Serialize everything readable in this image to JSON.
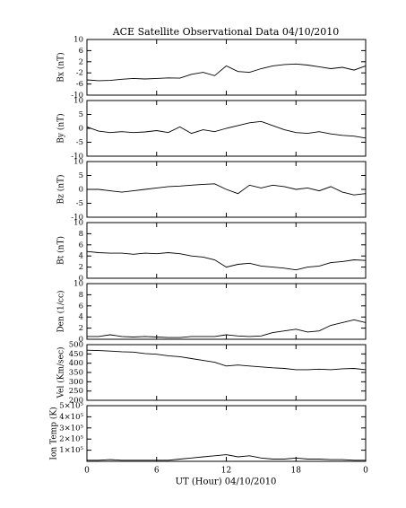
{
  "chart_data": [
    {
      "type": "line",
      "title": "ACE Satellite Observational Data   04/10/2010",
      "ylabel": "Bx (nT)",
      "color": "#000000",
      "x": [
        0,
        1,
        2,
        3,
        4,
        5,
        6,
        7,
        8,
        9,
        10,
        11,
        12,
        13,
        14,
        15,
        16,
        17,
        18,
        19,
        20,
        21,
        22,
        23,
        24
      ],
      "values": [
        -4.5,
        -4.8,
        -4.7,
        -4.3,
        -4.0,
        -4.2,
        -4.0,
        -3.8,
        -3.9,
        -2.5,
        -1.8,
        -3.0,
        0.5,
        -1.5,
        -1.8,
        -0.5,
        0.5,
        1.0,
        1.2,
        0.8,
        0.2,
        -0.5,
        0.0,
        -1.0,
        0.5
      ],
      "xlim": [
        0,
        24
      ],
      "ylim": [
        -10,
        10
      ],
      "yticks": [
        -10,
        -6,
        -2,
        2,
        6,
        10
      ]
    },
    {
      "type": "line",
      "ylabel": "By (nT)",
      "color": "#000000",
      "x": [
        0,
        1,
        2,
        3,
        4,
        5,
        6,
        7,
        8,
        9,
        10,
        11,
        12,
        13,
        14,
        15,
        16,
        17,
        18,
        19,
        20,
        21,
        22,
        23,
        24
      ],
      "values": [
        0.5,
        -1,
        -1.5,
        -1.2,
        -1.5,
        -1.3,
        -0.8,
        -1.5,
        0.5,
        -1.8,
        -0.5,
        -1.2,
        0,
        1,
        2,
        2.5,
        1,
        -0.5,
        -1.5,
        -1.8,
        -1.2,
        -2.0,
        -2.5,
        -2.8,
        -3.5
      ],
      "xlim": [
        0,
        24
      ],
      "ylim": [
        -10,
        10
      ],
      "yticks": [
        -10,
        -5,
        0,
        5,
        10
      ]
    },
    {
      "type": "line",
      "ylabel": "Bz (nT)",
      "color": "#000000",
      "x": [
        0,
        1,
        2,
        3,
        4,
        5,
        6,
        7,
        8,
        9,
        10,
        11,
        12,
        13,
        14,
        15,
        16,
        17,
        18,
        19,
        20,
        21,
        22,
        23,
        24
      ],
      "values": [
        0,
        0,
        -0.5,
        -1,
        -0.5,
        0,
        0.5,
        1,
        1.2,
        1.5,
        1.8,
        2,
        0,
        -1.5,
        1.5,
        0.5,
        1.5,
        1,
        0,
        0.5,
        -0.5,
        1,
        -1,
        -2,
        -1.5
      ],
      "xlim": [
        0,
        24
      ],
      "ylim": [
        -10,
        10
      ],
      "yticks": [
        -10,
        -5,
        0,
        5,
        10
      ]
    },
    {
      "type": "line",
      "ylabel": "Bt (nT)",
      "color": "#000000",
      "x": [
        0,
        1,
        2,
        3,
        4,
        5,
        6,
        7,
        8,
        9,
        10,
        11,
        12,
        13,
        14,
        15,
        16,
        17,
        18,
        19,
        20,
        21,
        22,
        23,
        24
      ],
      "values": [
        4.8,
        4.6,
        4.5,
        4.5,
        4.3,
        4.5,
        4.4,
        4.6,
        4.4,
        4.0,
        3.8,
        3.3,
        2,
        2.5,
        2.7,
        2.2,
        2,
        1.8,
        1.5,
        2,
        2.2,
        2.8,
        3,
        3.3,
        3.2
      ],
      "xlim": [
        0,
        24
      ],
      "ylim": [
        0,
        10
      ],
      "yticks": [
        0,
        2,
        4,
        6,
        8,
        10
      ]
    },
    {
      "type": "line",
      "ylabel": "Den (1/cc)",
      "color": "#000000",
      "x": [
        0,
        1,
        2,
        3,
        4,
        5,
        6,
        7,
        8,
        9,
        10,
        11,
        12,
        13,
        14,
        15,
        16,
        17,
        18,
        19,
        20,
        21,
        22,
        23,
        24
      ],
      "values": [
        0.5,
        0.5,
        0.8,
        0.5,
        0.4,
        0.5,
        0.4,
        0.3,
        0.3,
        0.5,
        0.5,
        0.5,
        0.8,
        0.6,
        0.5,
        0.6,
        1.2,
        1.5,
        1.8,
        1.3,
        1.5,
        2.5,
        3,
        3.5,
        3
      ],
      "xlim": [
        0,
        24
      ],
      "ylim": [
        0,
        10
      ],
      "yticks": [
        0,
        2,
        4,
        6,
        8,
        10
      ]
    },
    {
      "type": "line",
      "ylabel": "Vel (Km/sec)",
      "color": "#000000",
      "x": [
        0,
        1,
        2,
        3,
        4,
        5,
        6,
        7,
        8,
        9,
        10,
        11,
        12,
        13,
        14,
        15,
        16,
        17,
        18,
        19,
        20,
        21,
        22,
        23,
        24
      ],
      "values": [
        470,
        468,
        465,
        462,
        460,
        452,
        448,
        440,
        435,
        425,
        415,
        405,
        385,
        390,
        385,
        380,
        375,
        372,
        365,
        365,
        368,
        365,
        370,
        372,
        365
      ],
      "xlim": [
        0,
        24
      ],
      "ylim": [
        200,
        500
      ],
      "yticks": [
        200,
        250,
        300,
        350,
        400,
        450,
        500
      ]
    },
    {
      "type": "line",
      "ylabel": "Ion Temp (K)",
      "xlabel": "UT (Hour)   04/10/2010",
      "color": "#000000",
      "x": [
        0,
        1,
        2,
        3,
        4,
        5,
        6,
        7,
        8,
        9,
        10,
        11,
        12,
        13,
        14,
        15,
        16,
        17,
        18,
        19,
        20,
        21,
        22,
        23,
        24
      ],
      "values": [
        10000,
        10000,
        15000,
        10000,
        10000,
        10000,
        10000,
        10000,
        20000,
        30000,
        40000,
        50000,
        60000,
        40000,
        50000,
        30000,
        20000,
        20000,
        30000,
        20000,
        20000,
        15000,
        15000,
        10000,
        10000
      ],
      "xlim": [
        0,
        24
      ],
      "ylim": [
        0,
        500000
      ],
      "yticks": [
        {
          "value": 100000,
          "label": "1×10⁵"
        },
        {
          "value": 200000,
          "label": "2×10⁵"
        },
        {
          "value": 300000,
          "label": "3×10⁵"
        },
        {
          "value": 400000,
          "label": "4×10⁵"
        },
        {
          "value": 500000,
          "label": "5×10⁵"
        }
      ],
      "xticks": [
        0,
        6,
        12,
        18,
        {
          "value": 24,
          "label": "0"
        }
      ]
    }
  ]
}
